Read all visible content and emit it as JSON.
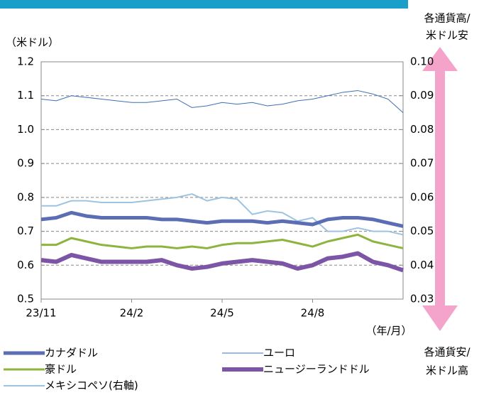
{
  "chart_data": {
    "type": "line",
    "y_label": "（米ドル）",
    "x_label": "（年/月）",
    "annotations": [
      "各通貨高/",
      "米ドル安",
      "各通貨安/",
      "米ドル高"
    ],
    "categories": [
      "23/11",
      null,
      null,
      null,
      null,
      null,
      "24/2",
      null,
      null,
      null,
      null,
      null,
      "24/5",
      null,
      null,
      null,
      null,
      null,
      "24/8",
      null,
      null,
      null,
      null,
      null,
      null
    ],
    "ylim": [
      0.5,
      1.2
    ],
    "yticks": [
      0.5,
      0.6,
      0.7,
      0.8,
      0.9,
      {
        "value": 1.0,
        "label": "1.0"
      },
      1.1,
      1.2
    ],
    "y2lim": [
      0.03,
      0.1
    ],
    "y2ticks": [
      {
        "value": 0.03,
        "label": "0.03"
      },
      {
        "value": 0.04,
        "label": "0.04"
      },
      {
        "value": 0.05,
        "label": "0.05"
      },
      {
        "value": 0.06,
        "label": "0.06"
      },
      {
        "value": 0.07,
        "label": "0.07"
      },
      {
        "value": 0.08,
        "label": "0.08"
      },
      {
        "value": 0.09,
        "label": "0.09"
      },
      {
        "value": 0.1,
        "label": "0.10"
      }
    ],
    "grid": true,
    "series": [
      {
        "name": "カナダドル",
        "color": "#5b6db3",
        "width": 5,
        "values": [
          0.735,
          0.74,
          0.755,
          0.745,
          0.74,
          0.74,
          0.74,
          0.74,
          0.735,
          0.735,
          0.73,
          0.725,
          0.73,
          0.73,
          0.73,
          0.725,
          0.73,
          0.725,
          0.72,
          0.735,
          0.74,
          0.74,
          0.735,
          0.725,
          0.715
        ]
      },
      {
        "name": "ユーロ",
        "color": "#3c71b6",
        "width": 1,
        "values": [
          1.09,
          1.085,
          1.1,
          1.095,
          1.09,
          1.085,
          1.08,
          1.08,
          1.085,
          1.09,
          1.065,
          1.07,
          1.08,
          1.075,
          1.08,
          1.07,
          1.075,
          1.085,
          1.09,
          1.1,
          1.11,
          1.115,
          1.105,
          1.09,
          1.05
        ]
      },
      {
        "name": "豪ドル",
        "color": "#8cb43e",
        "width": 3,
        "values": [
          0.66,
          0.66,
          0.68,
          0.67,
          0.66,
          0.655,
          0.65,
          0.655,
          0.655,
          0.65,
          0.655,
          0.65,
          0.66,
          0.665,
          0.665,
          0.67,
          0.675,
          0.665,
          0.655,
          0.67,
          0.68,
          0.69,
          0.67,
          0.66,
          0.65
        ]
      },
      {
        "name": "ニュージーランドドル",
        "color": "#7c55a6",
        "width": 6,
        "values": [
          0.615,
          0.61,
          0.63,
          0.62,
          0.61,
          0.61,
          0.61,
          0.61,
          0.615,
          0.6,
          0.59,
          0.595,
          0.605,
          0.61,
          0.615,
          0.61,
          0.605,
          0.59,
          0.6,
          0.62,
          0.625,
          0.635,
          0.61,
          0.6,
          0.585
        ]
      },
      {
        "name": "メキシコペソ(右軸)",
        "color": "#9cc4e2",
        "width": 2,
        "axis": "y2",
        "values": [
          0.0575,
          0.0575,
          0.059,
          0.059,
          0.0585,
          0.0585,
          0.0585,
          0.059,
          0.0595,
          0.06,
          0.061,
          0.059,
          0.06,
          0.0595,
          0.055,
          0.056,
          0.0555,
          0.053,
          0.054,
          0.05,
          0.05,
          0.051,
          0.05,
          0.05,
          0.049
        ]
      }
    ]
  }
}
